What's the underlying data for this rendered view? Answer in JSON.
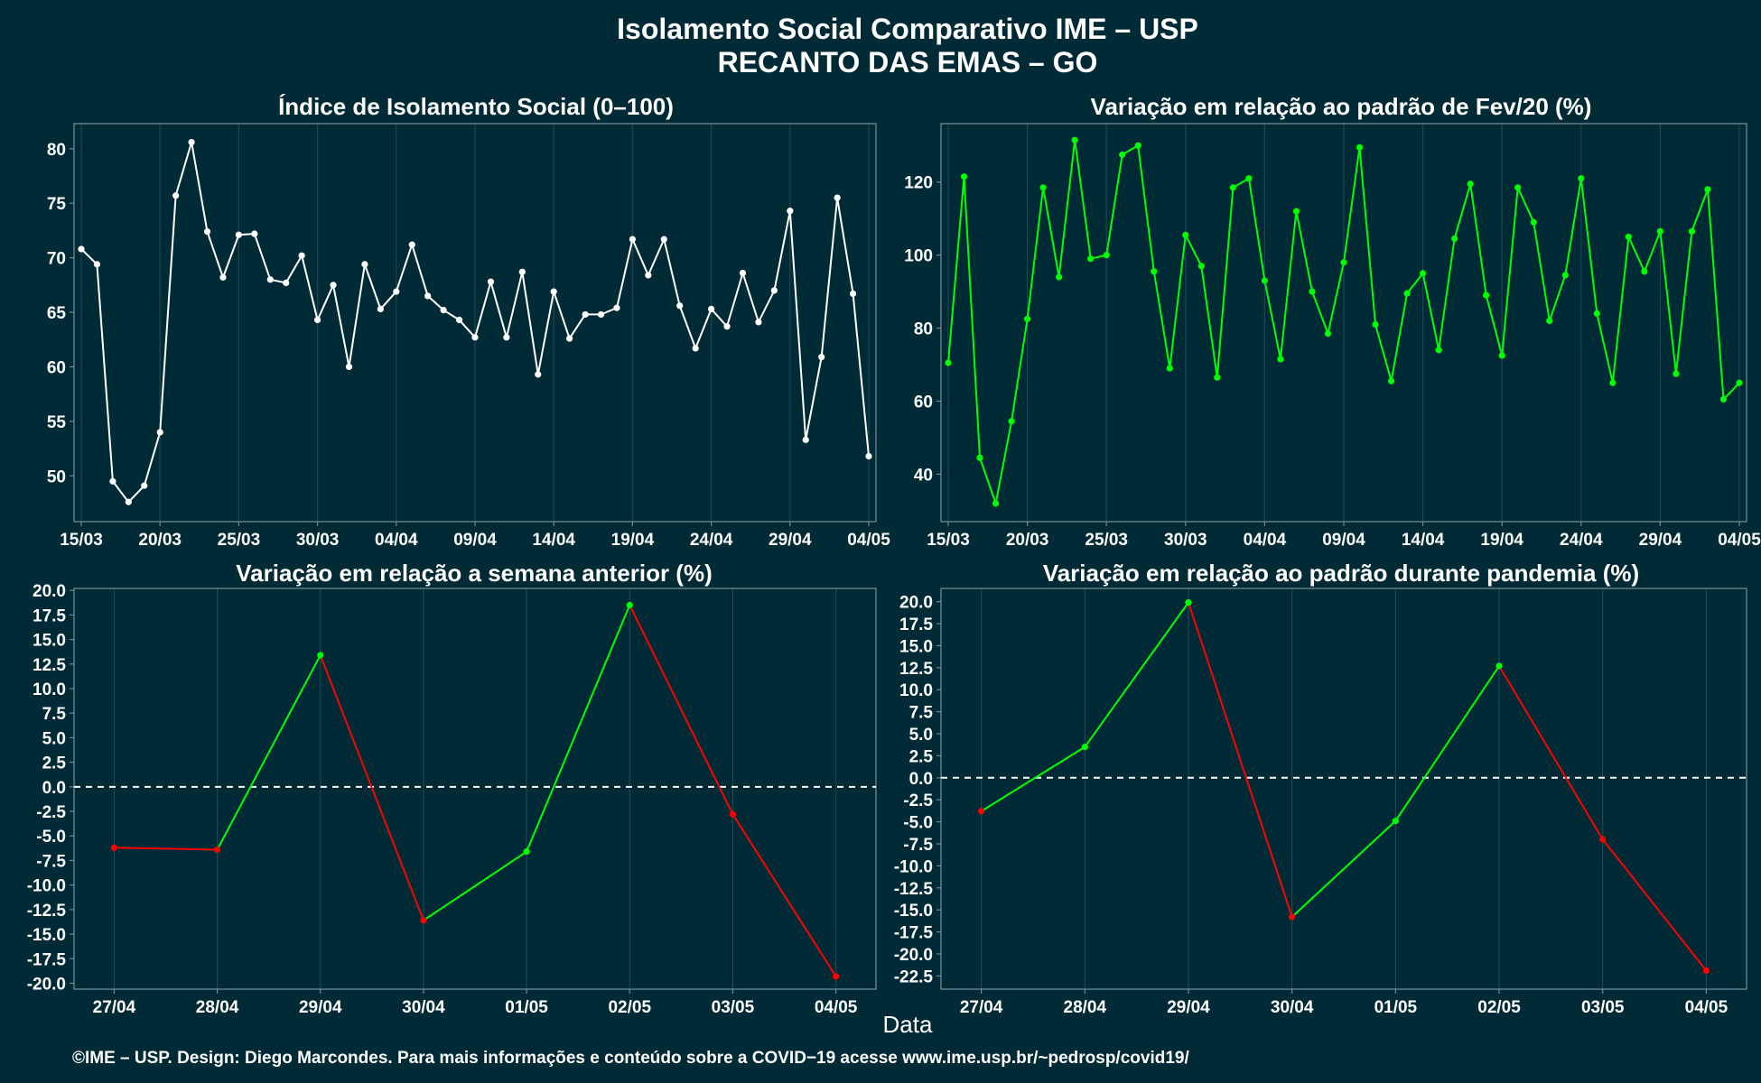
{
  "title_line1": "Isolamento Social Comparativo IME – USP",
  "title_line2": "RECANTO DAS EMAS – GO",
  "xlabel": "Data",
  "footer": "©IME – USP. Design: Diego Marcondes. Para mais informações e conteúdo sobre a COVID−19 acesse www.ime.usp.br/~pedrosp/covid19/",
  "colors": {
    "background": "#002b36",
    "panel_border": "#6b8a92",
    "grid": "#1f4652",
    "white_series": "#ffffff",
    "green_series": "#00ff00",
    "positive": "#00ff00",
    "negative": "#ff0000",
    "zero_line": "#ffffff"
  },
  "chart_data": [
    {
      "id": "isolamento",
      "type": "line",
      "title": "Índice de Isolamento Social (0–100)",
      "x_start": "15/03",
      "x_count": 51,
      "x_ticks": [
        "15/03",
        "20/03",
        "25/03",
        "30/03",
        "04/04",
        "09/04",
        "14/04",
        "19/04",
        "24/04",
        "29/04",
        "04/05"
      ],
      "y_ticks": [
        50,
        55,
        60,
        65,
        70,
        75,
        80
      ],
      "ylim": [
        45.8,
        82.3
      ],
      "series": [
        {
          "color": "white",
          "values": [
            70.8,
            69.4,
            49.5,
            47.6,
            49.1,
            54.0,
            75.7,
            80.6,
            72.4,
            68.2,
            72.1,
            72.2,
            68.0,
            67.7,
            70.2,
            64.3,
            67.5,
            60.0,
            69.4,
            65.3,
            66.9,
            71.2,
            66.5,
            65.2,
            64.3,
            62.7,
            67.8,
            62.7,
            68.7,
            59.3,
            66.9,
            62.6,
            64.8,
            64.8,
            65.4,
            71.7,
            68.4,
            71.7,
            65.6,
            61.7,
            65.3,
            63.7,
            68.6,
            64.1,
            67.0,
            74.3,
            53.3,
            60.9,
            75.5,
            66.7,
            51.8
          ]
        }
      ]
    },
    {
      "id": "fev20",
      "type": "line",
      "title": "Variação em relação ao padrão de Fev/20 (%)",
      "x_start": "15/03",
      "x_count": 51,
      "x_ticks": [
        "15/03",
        "20/03",
        "25/03",
        "30/03",
        "04/04",
        "09/04",
        "14/04",
        "19/04",
        "24/04",
        "29/04",
        "04/05"
      ],
      "y_ticks": [
        40,
        60,
        80,
        100,
        120
      ],
      "ylim": [
        27.0,
        136.0
      ],
      "series": [
        {
          "color": "green",
          "values": [
            70.5,
            121.5,
            44.5,
            32.0,
            54.5,
            82.5,
            118.5,
            94.0,
            131.5,
            99.0,
            100.0,
            127.5,
            130.0,
            95.5,
            69.0,
            105.5,
            97.0,
            66.5,
            118.5,
            121.0,
            93.0,
            71.5,
            112.0,
            90.0,
            78.5,
            98.0,
            129.5,
            81.0,
            65.5,
            89.5,
            95.0,
            74.0,
            104.5,
            119.5,
            89.0,
            72.5,
            118.5,
            109.0,
            82.0,
            94.5,
            121.0,
            84.0,
            65.0,
            105.0,
            95.5,
            106.5,
            67.5,
            106.5,
            118.0,
            60.5,
            65.0
          ]
        }
      ]
    },
    {
      "id": "semana",
      "type": "line",
      "title": "Variação em relação a semana anterior (%)",
      "categories": [
        "27/04",
        "28/04",
        "29/04",
        "30/04",
        "01/05",
        "02/05",
        "03/05",
        "04/05"
      ],
      "values": [
        -6.2,
        -6.4,
        13.4,
        -13.6,
        -6.6,
        18.5,
        -2.8,
        -19.3
      ],
      "y_ticks": [
        -20.0,
        -17.5,
        -15.0,
        -12.5,
        -10.0,
        -7.5,
        -5.0,
        -2.5,
        0.0,
        2.5,
        5.0,
        7.5,
        10.0,
        12.5,
        15.0,
        17.5,
        20.0
      ],
      "ylim": [
        -20.6,
        20.2
      ],
      "zero_line": true
    },
    {
      "id": "pandemia",
      "type": "line",
      "title": "Variação em relação ao padrão durante pandemia (%)",
      "categories": [
        "27/04",
        "28/04",
        "29/04",
        "30/04",
        "01/05",
        "02/05",
        "03/05",
        "04/05"
      ],
      "values": [
        -3.8,
        3.5,
        19.9,
        -15.8,
        -4.9,
        12.7,
        -7.0,
        -21.9
      ],
      "y_ticks": [
        -22.5,
        -20.0,
        -17.5,
        -15.0,
        -12.5,
        -10.0,
        -7.5,
        -5.0,
        -2.5,
        0.0,
        2.5,
        5.0,
        7.5,
        10.0,
        12.5,
        15.0,
        17.5,
        20.0
      ],
      "ylim": [
        -24.0,
        21.5
      ],
      "zero_line": true
    }
  ]
}
